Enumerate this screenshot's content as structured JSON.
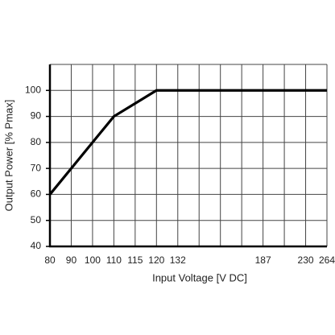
{
  "chart_data": {
    "type": "line",
    "x_label": "Input Voltage [V DC]",
    "y_label": "Output Power [% Pmax]",
    "x": [
      80,
      110,
      120,
      264
    ],
    "values": [
      60,
      90,
      100,
      100
    ],
    "color": "#000000",
    "xticks": [
      80,
      90,
      100,
      110,
      115,
      120,
      132,
      187,
      230,
      264
    ],
    "ylim": [
      40,
      110
    ],
    "yticks": [
      40,
      50,
      60,
      70,
      80,
      90,
      100
    ],
    "grid": true
  }
}
